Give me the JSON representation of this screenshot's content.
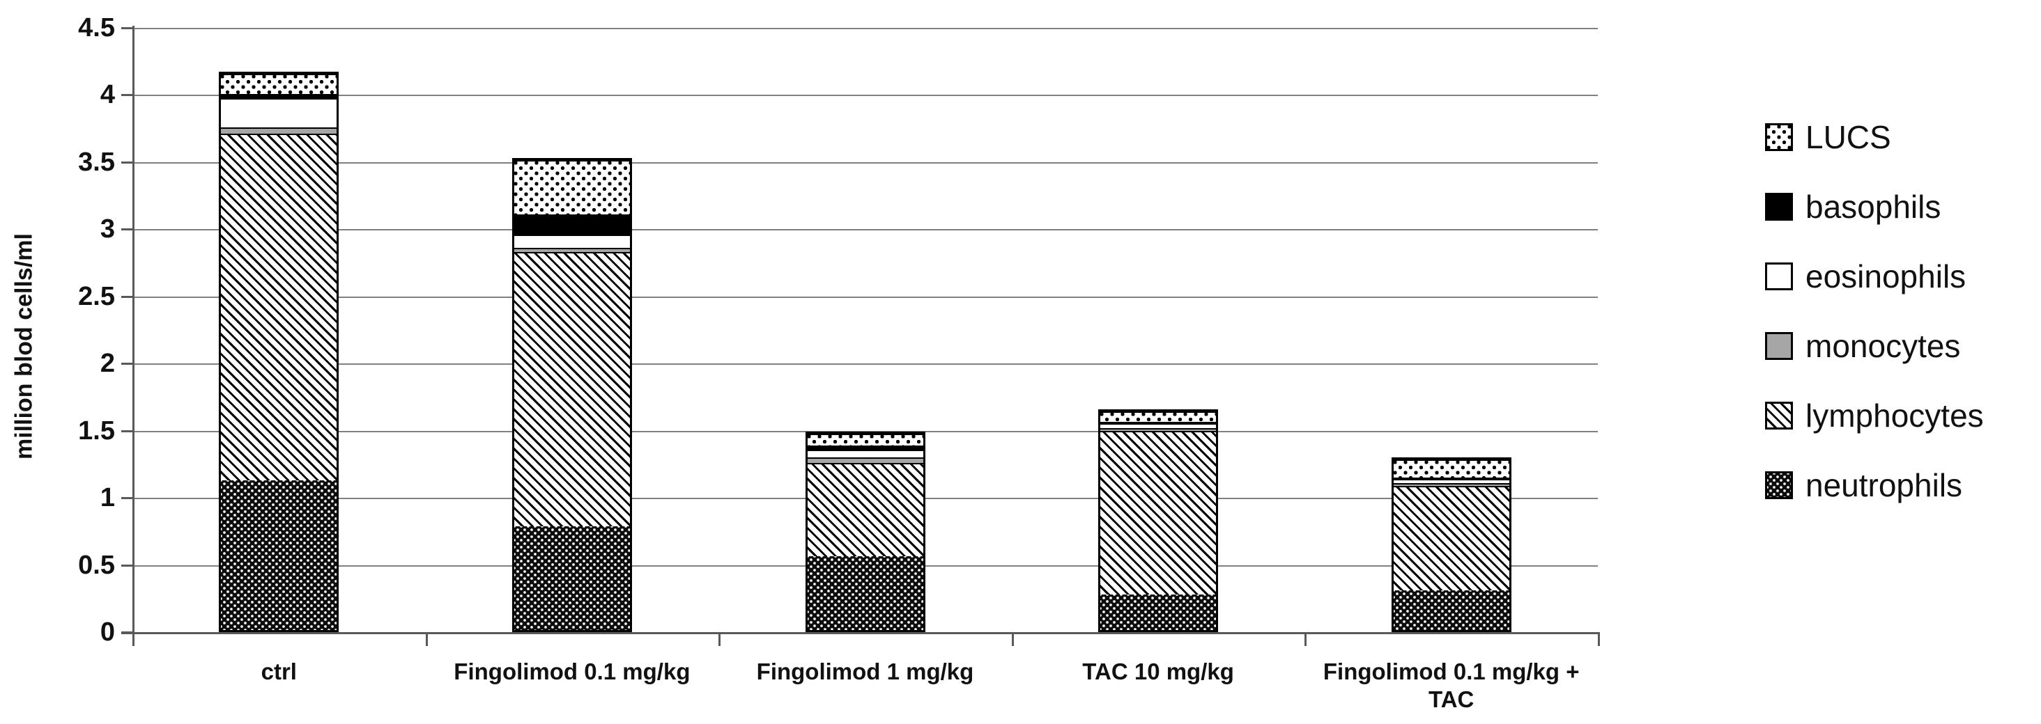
{
  "figure": {
    "background": "#ffffff"
  },
  "chart_data": {
    "type": "bar",
    "stacked": true,
    "title": "",
    "xlabel": "",
    "ylabel": "million blod cells/ml",
    "ylim": [
      0,
      4.5
    ],
    "ytick_step": 0.5,
    "ytick_labels": [
      "0",
      "0.5",
      "1",
      "1.5",
      "2",
      "2.5",
      "3",
      "3.5",
      "4",
      "4.5"
    ],
    "grid": "horizontal",
    "legend_position": "right",
    "categories": [
      "ctrl",
      "Fingolimod 0.1 mg/kg",
      "Fingolimod 1 mg/kg",
      "TAC 10 mg/kg",
      "Fingolimod 0.1 mg/kg + TAC"
    ],
    "series": [
      {
        "name": "neutrophils",
        "pattern": "black-with-white-dots",
        "values": [
          1.12,
          0.78,
          0.56,
          0.27,
          0.3
        ]
      },
      {
        "name": "lymphocytes",
        "pattern": "diagonal-hatch",
        "values": [
          2.6,
          2.06,
          0.71,
          1.24,
          0.8
        ]
      },
      {
        "name": "monocytes",
        "pattern": "solid-gray",
        "values": [
          0.05,
          0.03,
          0.04,
          0.02,
          0.02
        ]
      },
      {
        "name": "eosinophils",
        "pattern": "white",
        "values": [
          0.22,
          0.1,
          0.06,
          0.04,
          0.03
        ]
      },
      {
        "name": "basophils",
        "pattern": "solid-black",
        "values": [
          0.03,
          0.15,
          0.03,
          0.01,
          0.01
        ]
      },
      {
        "name": "LUCS",
        "pattern": "white-with-black-dots",
        "values": [
          0.15,
          0.41,
          0.09,
          0.08,
          0.14
        ]
      }
    ],
    "totals": [
      4.17,
      3.53,
      1.49,
      1.66,
      1.3
    ],
    "legend_order": [
      "LUCS",
      "basophils",
      "eosinophils",
      "monocytes",
      "lymphocytes",
      "neutrophils"
    ]
  },
  "colors": {
    "grid": "#808080",
    "axis": "#595959",
    "bar_border": "#000000",
    "text": "#111111",
    "monocytes_fill": "#a6a6a6",
    "background": "#ffffff"
  }
}
